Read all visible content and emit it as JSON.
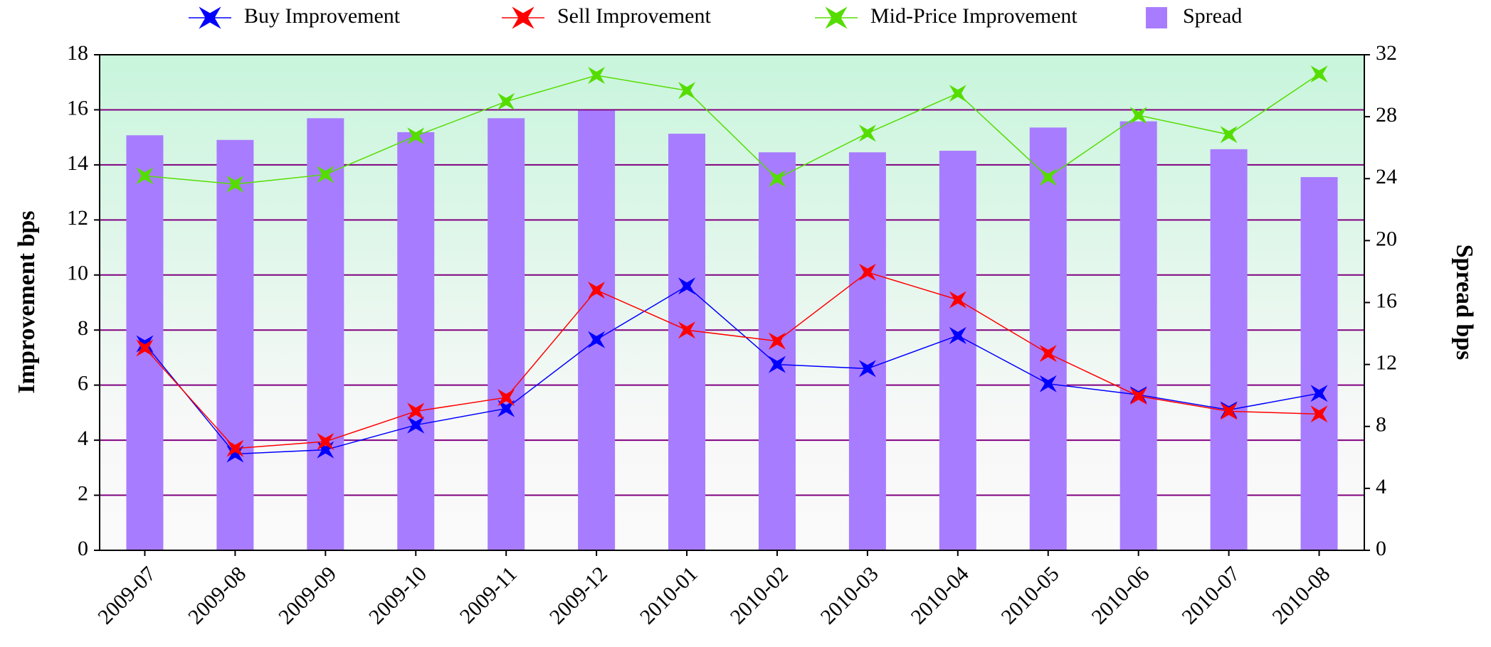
{
  "chart_data": {
    "type": "bar_line",
    "categories": [
      "2009-07",
      "2009-08",
      "2009-09",
      "2009-10",
      "2009-11",
      "2009-12",
      "2010-01",
      "2010-02",
      "2010-03",
      "2010-04",
      "2010-05",
      "2010-06",
      "2010-07",
      "2010-08"
    ],
    "series": [
      {
        "name": "Buy Improvement",
        "color": "#0000ff",
        "axis": "y",
        "values": [
          7.5,
          3.5,
          3.65,
          4.55,
          5.15,
          7.65,
          9.6,
          6.75,
          6.6,
          7.8,
          6.05,
          5.65,
          5.1,
          5.7
        ]
      },
      {
        "name": "Sell Improvement",
        "color": "#ff0000",
        "axis": "y",
        "values": [
          7.35,
          3.7,
          3.95,
          5.05,
          5.55,
          9.45,
          8.0,
          7.6,
          10.1,
          9.1,
          7.15,
          5.6,
          5.05,
          4.95
        ]
      },
      {
        "name": "Mid-Price Improvement",
        "color": "#55dd00",
        "axis": "y",
        "values": [
          13.6,
          13.3,
          13.65,
          15.05,
          16.3,
          17.25,
          16.7,
          13.5,
          15.15,
          16.6,
          13.55,
          15.8,
          15.1,
          17.3
        ]
      },
      {
        "name": "Spread",
        "color": "#a87cff",
        "axis": "y2",
        "kind": "bar",
        "values": [
          26.8,
          26.5,
          27.9,
          27.0,
          27.9,
          28.4,
          26.9,
          25.7,
          25.7,
          25.8,
          27.3,
          27.7,
          25.9,
          24.1
        ]
      }
    ],
    "ylabel": "Improvement bps",
    "y2label": "Spread bps",
    "ylim": [
      0,
      18
    ],
    "yticks": [
      0,
      2,
      4,
      6,
      8,
      10,
      12,
      14,
      16,
      18
    ],
    "y2lim": [
      0,
      32
    ],
    "y2ticks": [
      0,
      4,
      8,
      12,
      16,
      20,
      24,
      28,
      32
    ],
    "grid": true,
    "legend": "top"
  }
}
